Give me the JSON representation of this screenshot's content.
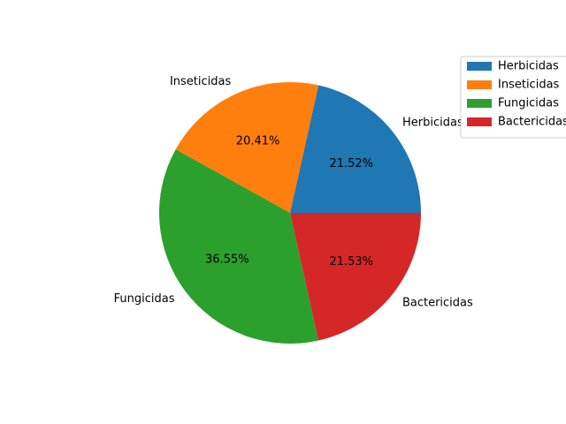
{
  "chart_data": {
    "type": "pie",
    "categories": [
      "Herbicidas",
      "Inseticidas",
      "Fungicidas",
      "Bactericidas"
    ],
    "values": [
      21.52,
      20.41,
      36.55,
      21.53
    ],
    "pct_labels": [
      "21.52%",
      "20.41%",
      "36.55%",
      "21.53%"
    ],
    "colors": [
      "#1f77b4",
      "#ff7f0e",
      "#2ca02c",
      "#d62728"
    ],
    "legend": {
      "position": "upper-right",
      "entries": [
        "Herbicidas",
        "Inseticidas",
        "Fungicidas",
        "Bactericidas"
      ]
    },
    "start_angle": 0,
    "counterclock": true
  }
}
